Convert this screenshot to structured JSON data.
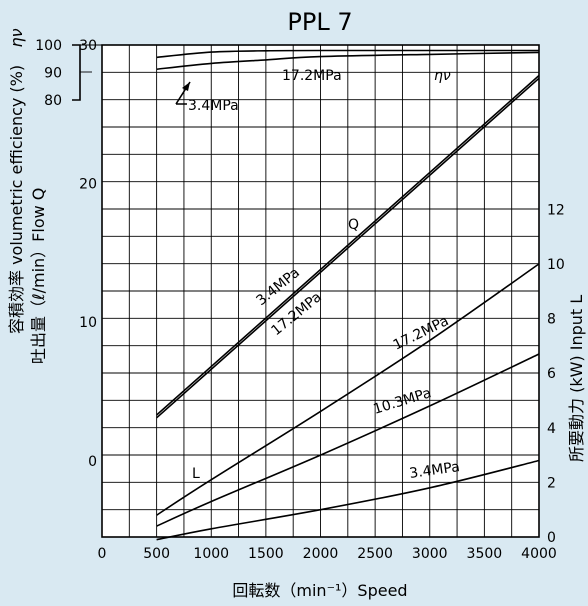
{
  "chart_data": {
    "type": "line",
    "title": "PPL 7",
    "xlabel": "回転数（min⁻¹）Speed",
    "xlim": [
      0,
      4000
    ],
    "x_ticks": [
      0,
      500,
      1000,
      1500,
      2000,
      2500,
      3000,
      3500,
      4000
    ],
    "left_axis": {
      "label": "吐出量（ℓ/min）Flow Q",
      "ylim": [
        -5.5,
        30
      ],
      "ticks": [
        "0",
        "10",
        "20",
        "30"
      ]
    },
    "efficiency_axis": {
      "label": "容積効率 volumetric efficiency (%)",
      "symbol": "ην",
      "ylim": [
        80,
        100
      ],
      "ticks": [
        "80",
        "90",
        "100"
      ]
    },
    "right_axis": {
      "label": "所要動力 (kW) Input L",
      "ylim": [
        0,
        13
      ],
      "ticks": [
        "0",
        "2",
        "4",
        "6",
        "8",
        "10",
        "12"
      ]
    },
    "grid": true,
    "series": [
      {
        "name": "ην 3.4MPa",
        "axis": "efficiency",
        "x": [
          500,
          1000,
          1500,
          2000,
          3000,
          4000
        ],
        "values": [
          95.5,
          97.4,
          97.9,
          98.0,
          98.0,
          98.0
        ]
      },
      {
        "name": "ην 17.2MPa",
        "axis": "efficiency",
        "x": [
          500,
          1000,
          1500,
          2000,
          3000,
          4000
        ],
        "values": [
          91.2,
          93.3,
          94.6,
          95.8,
          96.6,
          97.3
        ]
      },
      {
        "name": "Q 3.4MPa",
        "axis": "left",
        "x": [
          500,
          4000
        ],
        "values": [
          3.3,
          27.8
        ]
      },
      {
        "name": "Q 17.2MPa",
        "axis": "left",
        "x": [
          500,
          4000
        ],
        "values": [
          3.1,
          27.6
        ]
      },
      {
        "name": "L 17.2MPa",
        "axis": "right",
        "x": [
          500,
          1000,
          2000,
          3000,
          4000
        ],
        "values": [
          0.8,
          2.1,
          4.6,
          7.2,
          10.0
        ]
      },
      {
        "name": "L 10.3MPa",
        "axis": "right",
        "x": [
          500,
          1000,
          2000,
          3000,
          4000
        ],
        "values": [
          0.4,
          1.3,
          3.0,
          4.8,
          6.7
        ]
      },
      {
        "name": "L 3.4MPa",
        "axis": "right",
        "x": [
          500,
          1000,
          2000,
          3000,
          4000
        ],
        "values": [
          -0.1,
          0.3,
          1.0,
          1.8,
          2.8
        ]
      }
    ],
    "annotations": {
      "eta_symbol": "ην",
      "eta_17": "17.2MPa",
      "eta_34": "3.4MPa",
      "q_label": "Q",
      "q_34": "3.4MPa",
      "q_17": "17.2MPa",
      "l_label": "L",
      "l_17": "17.2MPa",
      "l_103": "10.3MPa",
      "l_34": "3.4MPa"
    }
  }
}
